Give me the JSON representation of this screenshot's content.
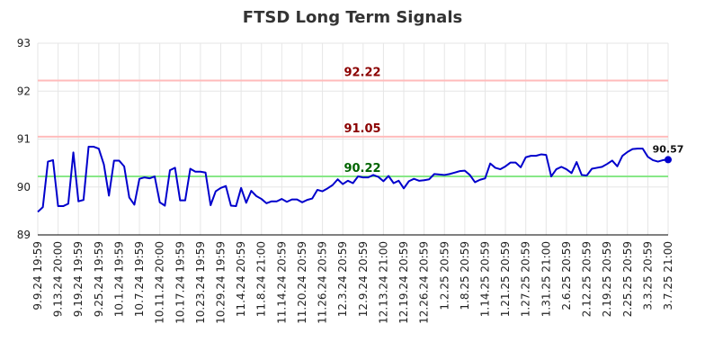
{
  "chart_data": {
    "type": "line",
    "title": "FTSD Long Term Signals",
    "ylim": [
      89,
      93
    ],
    "yticks": [
      "89",
      "90",
      "91",
      "92",
      "93"
    ],
    "xticks": [
      "9.9.24 19:59",
      "9.13.24 20:00",
      "9.19.24 19:59",
      "9.25.24 19:59",
      "10.1.24 19:59",
      "10.7.24 19:59",
      "10.11.24 20:00",
      "10.17.24 19:59",
      "10.23.24 19:59",
      "10.29.24 19:59",
      "11.4.24 20:59",
      "11.8.24 21:00",
      "11.14.24 20:59",
      "11.20.24 20:59",
      "11.26.24 20:59",
      "12.3.24 20:59",
      "12.9.24 20:59",
      "12.13.24 21:00",
      "12.19.24 20:59",
      "12.26.24 20:59",
      "1.2.25 20:59",
      "1.8.25 20:59",
      "1.14.25 20:59",
      "1.21.25 20:59",
      "1.27.25 20:59",
      "1.31.25 21:00",
      "2.6.25 20:59",
      "2.12.25 20:59",
      "2.19.25 20:59",
      "2.25.25 20:59",
      "3.3.25 20:59",
      "3.7.25 21:00"
    ],
    "grid": true,
    "series": [
      {
        "color": "#0000cc",
        "values": [
          89.48,
          89.58,
          90.53,
          90.56,
          89.6,
          89.6,
          89.65,
          90.72,
          89.7,
          89.73,
          90.84,
          90.84,
          90.8,
          90.47,
          89.82,
          90.55,
          90.55,
          90.43,
          89.78,
          89.63,
          90.17,
          90.2,
          90.18,
          90.22,
          89.68,
          89.61,
          90.35,
          90.4,
          89.72,
          89.72,
          90.38,
          90.32,
          90.32,
          90.3,
          89.62,
          89.91,
          89.98,
          90.02,
          89.61,
          89.6,
          89.98,
          89.67,
          89.92,
          89.81,
          89.75,
          89.66,
          89.7,
          89.7,
          89.75,
          89.69,
          89.74,
          89.74,
          89.68,
          89.73,
          89.76,
          89.94,
          89.91,
          89.97,
          90.04,
          90.16,
          90.06,
          90.13,
          90.08,
          90.22,
          90.2,
          90.2,
          90.25,
          90.21,
          90.12,
          90.23,
          90.08,
          90.13,
          89.97,
          90.12,
          90.17,
          90.13,
          90.14,
          90.16,
          90.27,
          90.26,
          90.25,
          90.27,
          90.3,
          90.33,
          90.34,
          90.25,
          90.1,
          90.15,
          90.18,
          90.49,
          90.4,
          90.37,
          90.43,
          90.51,
          90.51,
          90.41,
          90.62,
          90.65,
          90.65,
          90.68,
          90.67,
          90.22,
          90.37,
          90.42,
          90.37,
          90.29,
          90.52,
          90.25,
          90.24,
          90.38,
          90.4,
          90.42,
          90.48,
          90.55,
          90.43,
          90.65,
          90.73,
          90.79,
          90.8,
          90.8,
          90.63,
          90.56,
          90.53,
          90.56,
          90.57
        ]
      }
    ],
    "levels": [
      {
        "value": 92.22,
        "label": "92.22",
        "line_color": "#ffbbbb",
        "text_color": "#8b0000"
      },
      {
        "value": 91.05,
        "label": "91.05",
        "line_color": "#ffbbbb",
        "text_color": "#8b0000"
      },
      {
        "value": 90.22,
        "label": "90.22",
        "line_color": "#88e888",
        "text_color": "#006400"
      }
    ],
    "last_value_label": "90.57"
  }
}
